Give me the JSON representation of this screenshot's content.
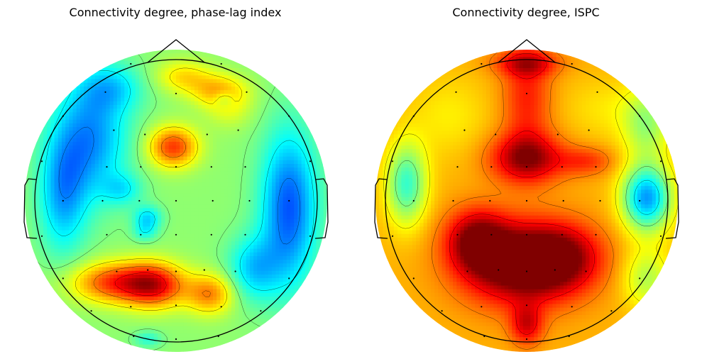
{
  "chart_data": [
    {
      "type": "heatmap",
      "subtype": "eeg-topographic-map",
      "title": "Connectivity degree, phase-lag index",
      "colormap": "jet",
      "show_head_outline": true,
      "show_electrodes": true,
      "show_contours": true,
      "hotspots": [
        {
          "region": "frontal-midline",
          "level": "high",
          "x": -0.02,
          "y": 0.38,
          "sx": 0.12,
          "sy": 0.1,
          "amp": 1.0
        },
        {
          "region": "frontal-top",
          "level": "high",
          "x": 0.05,
          "y": 0.88,
          "sx": 0.14,
          "sy": 0.08,
          "amp": 0.45
        },
        {
          "region": "right-frontal",
          "level": "mid",
          "x": 0.38,
          "y": 0.65,
          "sx": 0.12,
          "sy": 0.1,
          "amp": 0.25
        },
        {
          "region": "upper-right",
          "level": "mid",
          "x": 0.3,
          "y": 0.78,
          "sx": 0.14,
          "sy": 0.08,
          "amp": 0.55
        },
        {
          "region": "left-posterior",
          "level": "very-high",
          "x": -0.42,
          "y": -0.58,
          "sx": 0.22,
          "sy": 0.1,
          "amp": 1.0
        },
        {
          "region": "mid-posterior",
          "level": "very-high",
          "x": -0.15,
          "y": -0.6,
          "sx": 0.15,
          "sy": 0.11,
          "amp": 1.0
        },
        {
          "region": "right-posterior",
          "level": "high",
          "x": 0.24,
          "y": -0.66,
          "sx": 0.12,
          "sy": 0.1,
          "amp": 0.75
        },
        {
          "region": "left-central-low",
          "level": "low",
          "x": -0.2,
          "y": -0.12,
          "sx": 0.07,
          "sy": 0.06,
          "amp": -0.55
        },
        {
          "region": "left-central-low-2",
          "level": "low",
          "x": -0.22,
          "y": -0.22,
          "sx": 0.06,
          "sy": 0.05,
          "amp": -0.35
        },
        {
          "region": "right-frontal-low",
          "level": "low",
          "x": 0.34,
          "y": 0.72,
          "sx": 0.05,
          "sy": 0.04,
          "amp": -0.35
        },
        {
          "region": "left-frontal-low",
          "level": "very-low",
          "x": -0.6,
          "y": 0.45,
          "sx": 0.18,
          "sy": 0.3,
          "amp": -0.8
        },
        {
          "region": "left-upper-low",
          "level": "very-low",
          "x": -0.45,
          "y": 0.8,
          "sx": 0.16,
          "sy": 0.12,
          "amp": -0.45
        },
        {
          "region": "left-temporal-low",
          "level": "very-low",
          "x": -0.8,
          "y": 0.05,
          "sx": 0.12,
          "sy": 0.3,
          "amp": -0.7
        },
        {
          "region": "right-temporal-low",
          "level": "very-low",
          "x": 0.8,
          "y": -0.05,
          "sx": 0.14,
          "sy": 0.38,
          "amp": -1.0
        },
        {
          "region": "right-lower-low",
          "level": "very-low",
          "x": 0.55,
          "y": -0.48,
          "sx": 0.13,
          "sy": 0.16,
          "amp": -0.6
        },
        {
          "region": "bottom-low",
          "level": "low",
          "x": -0.2,
          "y": -0.98,
          "sx": 0.07,
          "sy": 0.04,
          "amp": -0.35
        },
        {
          "region": "left-mid-low",
          "level": "low",
          "x": -0.38,
          "y": 0.08,
          "sx": 0.1,
          "sy": 0.08,
          "amp": -0.4
        }
      ],
      "baseline": 0.05,
      "scale": 0.62
    },
    {
      "type": "heatmap",
      "subtype": "eeg-topographic-map",
      "title": "Connectivity degree, ISPC",
      "colormap": "jet",
      "show_head_outline": true,
      "show_electrodes": true,
      "show_contours": true,
      "hotspots": [
        {
          "region": "frontal-midline",
          "level": "high",
          "x": 0.0,
          "y": 0.3,
          "sx": 0.18,
          "sy": 0.12,
          "amp": 0.55
        },
        {
          "region": "frontal-band",
          "level": "mid-high",
          "x": 0.0,
          "y": 0.75,
          "sx": 0.12,
          "sy": 0.3,
          "amp": 0.3
        },
        {
          "region": "frontal-top",
          "level": "mid-high",
          "x": 0.0,
          "y": 0.97,
          "sx": 0.16,
          "sy": 0.06,
          "amp": 0.35
        },
        {
          "region": "right-frontal-ext",
          "level": "mid-high",
          "x": 0.42,
          "y": 0.28,
          "sx": 0.14,
          "sy": 0.07,
          "amp": 0.25
        },
        {
          "region": "posterior-left",
          "level": "high",
          "x": -0.35,
          "y": -0.28,
          "sx": 0.15,
          "sy": 0.15,
          "amp": 0.55
        },
        {
          "region": "posterior-center",
          "level": "high",
          "x": -0.05,
          "y": -0.45,
          "sx": 0.28,
          "sy": 0.2,
          "amp": 0.75
        },
        {
          "region": "posterior-right",
          "level": "high",
          "x": 0.25,
          "y": -0.4,
          "sx": 0.2,
          "sy": 0.16,
          "amp": 0.45
        },
        {
          "region": "bottom-center",
          "level": "high",
          "x": 0.0,
          "y": -0.88,
          "sx": 0.08,
          "sy": 0.1,
          "amp": 0.4
        },
        {
          "region": "right-temporal-low",
          "level": "low",
          "x": 0.85,
          "y": 0.02,
          "sx": 0.12,
          "sy": 0.16,
          "amp": -0.85
        },
        {
          "region": "left-temporal-low",
          "level": "low",
          "x": -0.85,
          "y": 0.12,
          "sx": 0.1,
          "sy": 0.2,
          "amp": -0.55
        },
        {
          "region": "right-top-low",
          "level": "low",
          "x": 0.85,
          "y": 0.55,
          "sx": 0.12,
          "sy": 0.18,
          "amp": -0.35
        },
        {
          "region": "right-bottom-low",
          "level": "low",
          "x": 0.85,
          "y": -0.55,
          "sx": 0.12,
          "sy": 0.15,
          "amp": -0.3
        },
        {
          "region": "left-upper-mid",
          "level": "mid-low",
          "x": -0.55,
          "y": 0.6,
          "sx": 0.2,
          "sy": 0.2,
          "amp": -0.12
        },
        {
          "region": "right-upper-mid",
          "level": "mid-low",
          "x": 0.55,
          "y": 0.65,
          "sx": 0.2,
          "sy": 0.15,
          "amp": -0.1
        }
      ],
      "baseline": 0.4,
      "scale": 1.0
    }
  ],
  "panels": {
    "left": {
      "title": "Connectivity degree, phase-lag index"
    },
    "right": {
      "title": "Connectivity degree, ISPC"
    }
  }
}
